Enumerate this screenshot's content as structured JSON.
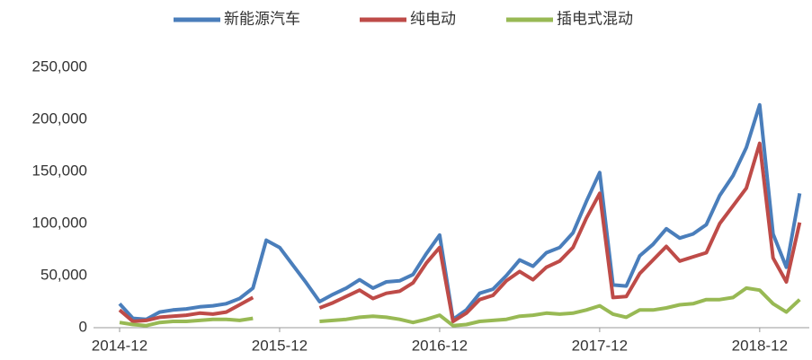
{
  "chart_data": {
    "type": "line",
    "categories": [
      "2014-12",
      null,
      null,
      null,
      null,
      null,
      null,
      null,
      null,
      null,
      null,
      null,
      "2015-12",
      null,
      null,
      null,
      null,
      null,
      null,
      null,
      null,
      null,
      null,
      null,
      "2016-12",
      null,
      null,
      null,
      null,
      null,
      null,
      null,
      null,
      null,
      null,
      null,
      "2017-12",
      null,
      null,
      null,
      null,
      null,
      null,
      null,
      null,
      null,
      null,
      null,
      "2018-12",
      null,
      null,
      null
    ],
    "series": [
      {
        "name": "新能源汽车",
        "color": "#4a7ebb",
        "values": [
          23000,
          9000,
          8000,
          15000,
          17000,
          18000,
          20000,
          21000,
          23000,
          28000,
          38000,
          84000,
          77000,
          60000,
          43000,
          25000,
          32000,
          38000,
          46000,
          38000,
          44000,
          45000,
          51000,
          71000,
          89000,
          8000,
          17000,
          33000,
          37000,
          50000,
          65000,
          59000,
          72000,
          77000,
          91000,
          121000,
          149000,
          41000,
          40000,
          69000,
          80000,
          95000,
          86000,
          90000,
          99000,
          127000,
          146000,
          173000,
          214000,
          90000,
          58000,
          129000
        ]
      },
      {
        "name": "纯电动",
        "color": "#be4b48",
        "values": [
          17000,
          6000,
          7000,
          10000,
          11000,
          12000,
          14000,
          13000,
          15000,
          22000,
          29000,
          null,
          null,
          null,
          null,
          19000,
          24000,
          30000,
          36000,
          28000,
          33000,
          35000,
          43000,
          62000,
          77000,
          6000,
          14000,
          27000,
          31000,
          45000,
          54000,
          46000,
          58000,
          64000,
          77000,
          105000,
          129000,
          29000,
          30000,
          52000,
          65000,
          78000,
          64000,
          68000,
          72000,
          100000,
          117000,
          134000,
          177000,
          67000,
          44000,
          101000
        ]
      },
      {
        "name": "插电式混动",
        "color": "#98b954",
        "values": [
          5000,
          3000,
          2000,
          5000,
          6000,
          6000,
          7000,
          8000,
          8000,
          7000,
          9000,
          null,
          null,
          null,
          null,
          6000,
          7000,
          8000,
          10000,
          11000,
          10000,
          8000,
          5000,
          8000,
          12000,
          2000,
          3000,
          6000,
          7000,
          8000,
          11000,
          12000,
          14000,
          13000,
          14000,
          17000,
          21000,
          13000,
          10000,
          17000,
          17000,
          19000,
          22000,
          23000,
          27000,
          27000,
          29000,
          38000,
          36000,
          23000,
          15000,
          27000
        ]
      }
    ],
    "ylim": [
      0,
      250000
    ],
    "yticks": [
      0,
      {
        "value": 50000,
        "label": "50,000"
      },
      {
        "value": 100000,
        "label": "100,000"
      },
      {
        "value": 150000,
        "label": "150,000"
      },
      {
        "value": 200000,
        "label": "200,000"
      },
      {
        "value": 250000,
        "label": "250,000"
      }
    ],
    "grid": false,
    "legend": "top"
  }
}
